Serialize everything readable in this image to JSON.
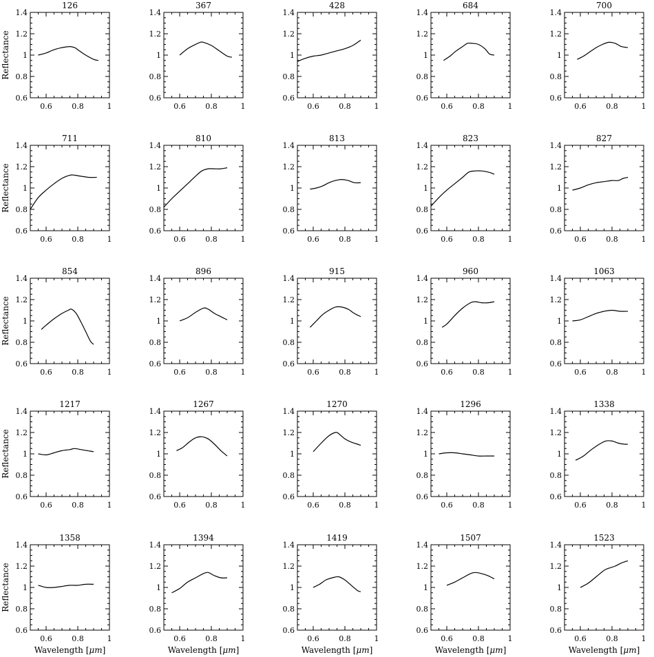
{
  "figure": {
    "xlabel_prefix": "Wavelength [",
    "xlabel_unit": "μm",
    "xlabel_suffix": "]",
    "ylabel": "Reflectance"
  },
  "chart_data": [
    {
      "type": "line",
      "title": "126",
      "xlim": [
        0.5,
        1.0
      ],
      "ylim": [
        0.6,
        1.4
      ],
      "x": [
        0.55,
        0.6,
        0.65,
        0.7,
        0.75,
        0.78,
        0.8,
        0.85,
        0.9,
        0.93
      ],
      "y": [
        1.0,
        1.02,
        1.05,
        1.07,
        1.08,
        1.07,
        1.05,
        1.0,
        0.96,
        0.95
      ]
    },
    {
      "type": "line",
      "title": "367",
      "xlim": [
        0.5,
        1.0
      ],
      "ylim": [
        0.6,
        1.4
      ],
      "x": [
        0.6,
        0.65,
        0.7,
        0.73,
        0.75,
        0.8,
        0.85,
        0.9,
        0.93
      ],
      "y": [
        1.0,
        1.06,
        1.1,
        1.12,
        1.12,
        1.09,
        1.04,
        0.99,
        0.98
      ]
    },
    {
      "type": "line",
      "title": "428",
      "xlim": [
        0.5,
        1.0
      ],
      "ylim": [
        0.6,
        1.4
      ],
      "x": [
        0.5,
        0.55,
        0.6,
        0.65,
        0.7,
        0.75,
        0.8,
        0.85,
        0.9
      ],
      "y": [
        0.94,
        0.97,
        0.99,
        1.0,
        1.02,
        1.04,
        1.06,
        1.09,
        1.14
      ]
    },
    {
      "type": "line",
      "title": "684",
      "xlim": [
        0.5,
        1.0
      ],
      "ylim": [
        0.6,
        1.4
      ],
      "x": [
        0.58,
        0.62,
        0.66,
        0.7,
        0.73,
        0.76,
        0.8,
        0.84,
        0.87,
        0.9
      ],
      "y": [
        0.95,
        0.99,
        1.04,
        1.08,
        1.11,
        1.11,
        1.1,
        1.06,
        1.01,
        1.0
      ]
    },
    {
      "type": "line",
      "title": "700",
      "xlim": [
        0.5,
        1.0
      ],
      "ylim": [
        0.6,
        1.4
      ],
      "x": [
        0.58,
        0.62,
        0.66,
        0.7,
        0.74,
        0.78,
        0.82,
        0.86,
        0.9
      ],
      "y": [
        0.96,
        0.99,
        1.03,
        1.07,
        1.1,
        1.12,
        1.11,
        1.08,
        1.07
      ]
    },
    {
      "type": "line",
      "title": "711",
      "xlim": [
        0.5,
        1.0
      ],
      "ylim": [
        0.6,
        1.4
      ],
      "x": [
        0.5,
        0.55,
        0.6,
        0.65,
        0.7,
        0.75,
        0.78,
        0.82,
        0.87,
        0.92
      ],
      "y": [
        0.8,
        0.91,
        0.98,
        1.04,
        1.09,
        1.12,
        1.12,
        1.11,
        1.1,
        1.1
      ]
    },
    {
      "type": "line",
      "title": "810",
      "xlim": [
        0.5,
        1.0
      ],
      "ylim": [
        0.6,
        1.4
      ],
      "x": [
        0.5,
        0.55,
        0.6,
        0.65,
        0.7,
        0.74,
        0.78,
        0.82,
        0.86,
        0.9
      ],
      "y": [
        0.82,
        0.9,
        0.97,
        1.04,
        1.11,
        1.16,
        1.18,
        1.18,
        1.18,
        1.19
      ]
    },
    {
      "type": "line",
      "title": "813",
      "xlim": [
        0.5,
        1.0
      ],
      "ylim": [
        0.6,
        1.4
      ],
      "x": [
        0.58,
        0.62,
        0.66,
        0.7,
        0.74,
        0.78,
        0.82,
        0.86,
        0.9
      ],
      "y": [
        0.99,
        1.0,
        1.02,
        1.05,
        1.07,
        1.08,
        1.07,
        1.05,
        1.05
      ]
    },
    {
      "type": "line",
      "title": "823",
      "xlim": [
        0.5,
        1.0
      ],
      "ylim": [
        0.6,
        1.4
      ],
      "x": [
        0.5,
        0.55,
        0.6,
        0.65,
        0.7,
        0.74,
        0.78,
        0.82,
        0.86,
        0.9
      ],
      "y": [
        0.83,
        0.91,
        0.98,
        1.04,
        1.1,
        1.15,
        1.16,
        1.16,
        1.15,
        1.13
      ]
    },
    {
      "type": "line",
      "title": "827",
      "xlim": [
        0.5,
        1.0
      ],
      "ylim": [
        0.6,
        1.4
      ],
      "x": [
        0.55,
        0.6,
        0.65,
        0.7,
        0.75,
        0.8,
        0.84,
        0.87,
        0.9
      ],
      "y": [
        0.98,
        1.0,
        1.03,
        1.05,
        1.06,
        1.07,
        1.07,
        1.09,
        1.1
      ]
    },
    {
      "type": "line",
      "title": "854",
      "xlim": [
        0.5,
        1.0
      ],
      "ylim": [
        0.6,
        1.4
      ],
      "x": [
        0.57,
        0.6,
        0.65,
        0.7,
        0.74,
        0.76,
        0.79,
        0.82,
        0.85,
        0.88,
        0.9
      ],
      "y": [
        0.92,
        0.96,
        1.02,
        1.07,
        1.1,
        1.11,
        1.07,
        0.99,
        0.9,
        0.81,
        0.78
      ]
    },
    {
      "type": "line",
      "title": "896",
      "xlim": [
        0.5,
        1.0
      ],
      "ylim": [
        0.6,
        1.4
      ],
      "x": [
        0.6,
        0.65,
        0.7,
        0.75,
        0.78,
        0.82,
        0.86,
        0.9
      ],
      "y": [
        1.0,
        1.03,
        1.08,
        1.12,
        1.11,
        1.07,
        1.04,
        1.01
      ]
    },
    {
      "type": "line",
      "title": "915",
      "xlim": [
        0.5,
        1.0
      ],
      "ylim": [
        0.6,
        1.4
      ],
      "x": [
        0.58,
        0.62,
        0.66,
        0.7,
        0.74,
        0.78,
        0.82,
        0.86,
        0.9
      ],
      "y": [
        0.94,
        1.0,
        1.06,
        1.1,
        1.13,
        1.13,
        1.11,
        1.07,
        1.04
      ]
    },
    {
      "type": "line",
      "title": "960",
      "xlim": [
        0.5,
        1.0
      ],
      "ylim": [
        0.6,
        1.4
      ],
      "x": [
        0.57,
        0.6,
        0.65,
        0.7,
        0.75,
        0.78,
        0.82,
        0.86,
        0.9
      ],
      "y": [
        0.94,
        0.97,
        1.05,
        1.12,
        1.17,
        1.18,
        1.17,
        1.17,
        1.18
      ]
    },
    {
      "type": "line",
      "title": "1063",
      "xlim": [
        0.5,
        1.0
      ],
      "ylim": [
        0.6,
        1.4
      ],
      "x": [
        0.55,
        0.6,
        0.65,
        0.7,
        0.75,
        0.8,
        0.85,
        0.9
      ],
      "y": [
        1.0,
        1.01,
        1.04,
        1.07,
        1.09,
        1.1,
        1.09,
        1.09
      ]
    },
    {
      "type": "line",
      "title": "1217",
      "xlim": [
        0.5,
        1.0
      ],
      "ylim": [
        0.6,
        1.4
      ],
      "x": [
        0.55,
        0.6,
        0.65,
        0.7,
        0.75,
        0.78,
        0.82,
        0.86,
        0.9
      ],
      "y": [
        1.0,
        0.99,
        1.01,
        1.03,
        1.04,
        1.05,
        1.04,
        1.03,
        1.02
      ]
    },
    {
      "type": "line",
      "title": "1267",
      "xlim": [
        0.5,
        1.0
      ],
      "ylim": [
        0.6,
        1.4
      ],
      "x": [
        0.58,
        0.62,
        0.66,
        0.7,
        0.74,
        0.78,
        0.82,
        0.86,
        0.9
      ],
      "y": [
        1.03,
        1.06,
        1.11,
        1.15,
        1.16,
        1.14,
        1.09,
        1.03,
        0.98
      ]
    },
    {
      "type": "line",
      "title": "1270",
      "xlim": [
        0.5,
        1.0
      ],
      "ylim": [
        0.6,
        1.4
      ],
      "x": [
        0.6,
        0.65,
        0.7,
        0.74,
        0.76,
        0.8,
        0.84,
        0.88,
        0.9
      ],
      "y": [
        1.02,
        1.1,
        1.17,
        1.2,
        1.19,
        1.14,
        1.11,
        1.09,
        1.08
      ]
    },
    {
      "type": "line",
      "title": "1296",
      "xlim": [
        0.5,
        1.0
      ],
      "ylim": [
        0.6,
        1.4
      ],
      "x": [
        0.55,
        0.6,
        0.65,
        0.7,
        0.75,
        0.8,
        0.85,
        0.9
      ],
      "y": [
        1.0,
        1.01,
        1.01,
        1.0,
        0.99,
        0.98,
        0.98,
        0.98
      ]
    },
    {
      "type": "line",
      "title": "1338",
      "xlim": [
        0.5,
        1.0
      ],
      "ylim": [
        0.6,
        1.4
      ],
      "x": [
        0.57,
        0.62,
        0.67,
        0.72,
        0.76,
        0.8,
        0.84,
        0.88,
        0.9
      ],
      "y": [
        0.94,
        0.98,
        1.04,
        1.09,
        1.12,
        1.12,
        1.1,
        1.09,
        1.09
      ]
    },
    {
      "type": "line",
      "title": "1358",
      "xlim": [
        0.5,
        1.0
      ],
      "ylim": [
        0.6,
        1.4
      ],
      "x": [
        0.55,
        0.6,
        0.65,
        0.7,
        0.75,
        0.8,
        0.85,
        0.9
      ],
      "y": [
        1.02,
        1.0,
        1.0,
        1.01,
        1.02,
        1.02,
        1.03,
        1.03
      ]
    },
    {
      "type": "line",
      "title": "1394",
      "xlim": [
        0.5,
        1.0
      ],
      "ylim": [
        0.6,
        1.4
      ],
      "x": [
        0.55,
        0.6,
        0.65,
        0.7,
        0.75,
        0.78,
        0.82,
        0.86,
        0.9
      ],
      "y": [
        0.95,
        0.99,
        1.05,
        1.09,
        1.13,
        1.14,
        1.11,
        1.09,
        1.09
      ]
    },
    {
      "type": "line",
      "title": "1419",
      "xlim": [
        0.5,
        1.0
      ],
      "ylim": [
        0.6,
        1.4
      ],
      "x": [
        0.6,
        0.64,
        0.68,
        0.72,
        0.76,
        0.8,
        0.84,
        0.88,
        0.9
      ],
      "y": [
        1.0,
        1.03,
        1.07,
        1.09,
        1.1,
        1.07,
        1.02,
        0.97,
        0.96
      ]
    },
    {
      "type": "line",
      "title": "1507",
      "xlim": [
        0.5,
        1.0
      ],
      "ylim": [
        0.6,
        1.4
      ],
      "x": [
        0.6,
        0.65,
        0.7,
        0.75,
        0.78,
        0.82,
        0.86,
        0.9
      ],
      "y": [
        1.02,
        1.05,
        1.09,
        1.13,
        1.14,
        1.13,
        1.11,
        1.08
      ]
    },
    {
      "type": "line",
      "title": "1523",
      "xlim": [
        0.5,
        1.0
      ],
      "ylim": [
        0.6,
        1.4
      ],
      "x": [
        0.6,
        0.65,
        0.7,
        0.75,
        0.78,
        0.82,
        0.86,
        0.9
      ],
      "y": [
        1.0,
        1.04,
        1.1,
        1.16,
        1.18,
        1.2,
        1.23,
        1.25
      ]
    }
  ]
}
